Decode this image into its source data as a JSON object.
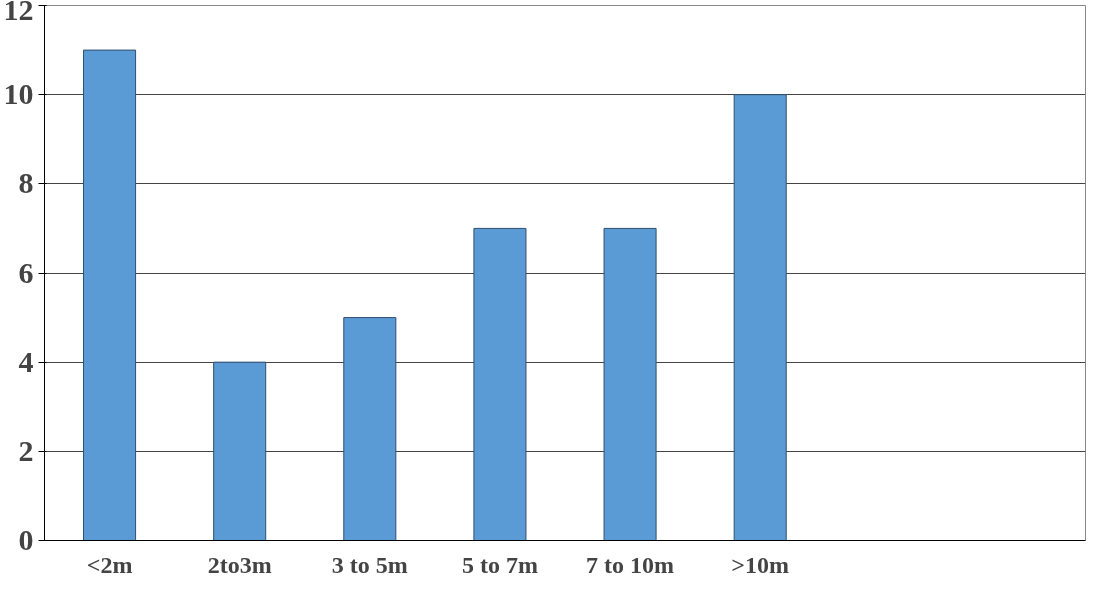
{
  "chart_data": {
    "type": "bar",
    "categories": [
      "<2m",
      "2to3m",
      "3 to 5m",
      "5 to 7m",
      "7 to 10m",
      ">10m",
      null,
      null
    ],
    "values": [
      11,
      4,
      5,
      7,
      7,
      10,
      null,
      null
    ],
    "color": "#5b9bd5",
    "ylim": [
      0,
      12
    ],
    "yticks": [
      0,
      2,
      4,
      6,
      8,
      10,
      12
    ],
    "grid": "y"
  }
}
